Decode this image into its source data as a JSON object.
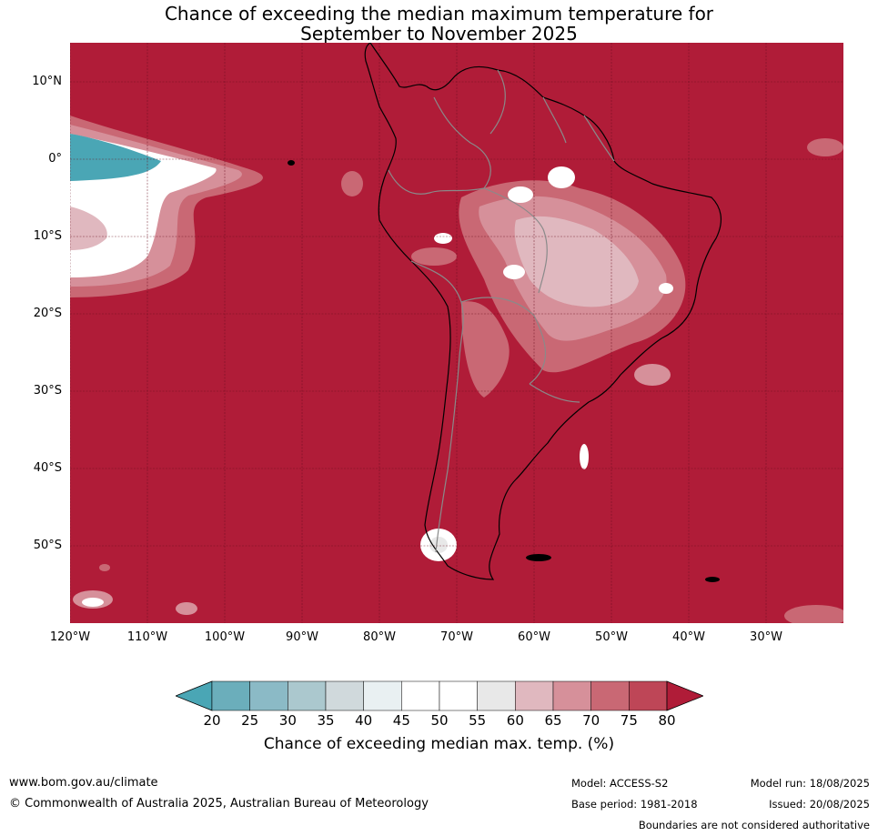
{
  "title_line1": "Chance of exceeding the median maximum temperature for",
  "title_line2": "September to November 2025",
  "lat_labels": [
    "10°N",
    "0°",
    "10°S",
    "20°S",
    "30°S",
    "40°S",
    "50°S"
  ],
  "lon_labels": [
    "120°W",
    "110°W",
    "100°W",
    "90°W",
    "80°W",
    "70°W",
    "60°W",
    "50°W",
    "40°W",
    "30°W"
  ],
  "colorbar": {
    "ticks": [
      "20",
      "25",
      "30",
      "35",
      "40",
      "45",
      "50",
      "55",
      "60",
      "65",
      "70",
      "75",
      "80"
    ],
    "colors": [
      "#4aa6b5",
      "#6baebb",
      "#8bbac6",
      "#abc8ce",
      "#d0d9dc",
      "#e9f0f2",
      "#ffffff",
      "#ffffff",
      "#e8e8e8",
      "#e0b8bf",
      "#d6909a",
      "#c96874",
      "#be4657",
      "#b01c38"
    ],
    "label": "Chance of exceeding median max. temp. (%)"
  },
  "colors": {
    "background_high": "#b01c38",
    "grid": "#6a0e1e",
    "coast": "#000000",
    "border": "#8a8a8a"
  },
  "footer": {
    "website": "www.bom.gov.au/climate",
    "copyright": "© Commonwealth of Australia 2025, Australian Bureau of Meteorology",
    "model": "Model: ACCESS-S2",
    "base_period": "Base period: 1981-2018",
    "model_run": "Model run: 18/08/2025",
    "issued": "Issued: 20/08/2025",
    "disclaimer": "Boundaries are not considered authoritative"
  }
}
